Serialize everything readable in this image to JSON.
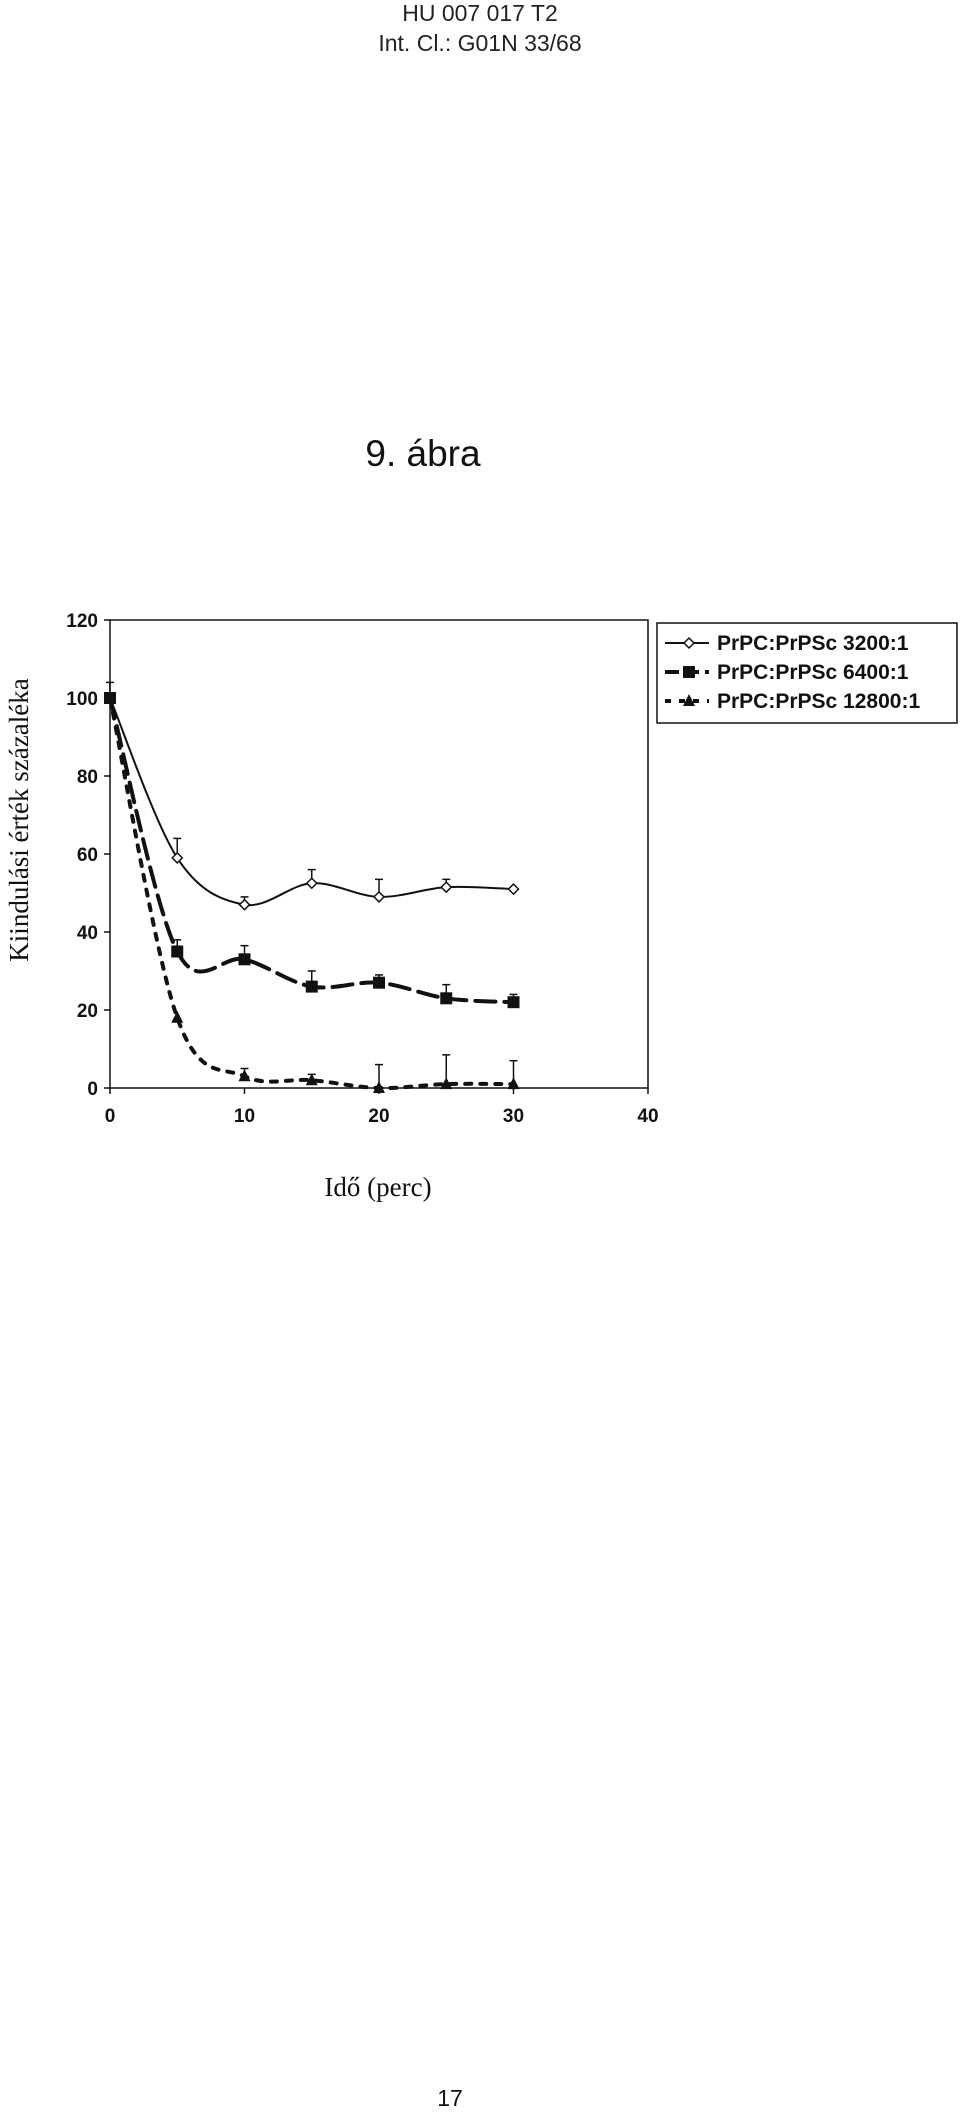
{
  "header": {
    "line1": "HU 007 017 T2",
    "line2": "Int. Cl.: G01N 33/68"
  },
  "figure_title": "9. ábra",
  "page_number": "17",
  "chart_data": {
    "type": "line",
    "title": "",
    "xlabel": "Idő (perc)",
    "ylabel": "Kiindulási érték százaléka",
    "xlim": [
      0,
      40
    ],
    "ylim": [
      0,
      120
    ],
    "xticks": [
      0,
      10,
      20,
      30,
      40
    ],
    "yticks": [
      0,
      20,
      40,
      60,
      80,
      100,
      120
    ],
    "legend_position": "right, outside plot",
    "grid": false,
    "x": [
      0,
      5,
      10,
      15,
      20,
      25,
      30
    ],
    "series": [
      {
        "name": "PrPC:PrPSc 3200:1",
        "marker": "open-diamond",
        "line": "solid",
        "values": [
          100,
          59,
          47,
          52.5,
          49,
          51.5,
          51
        ],
        "errors": [
          4,
          5,
          2,
          3.5,
          4.5,
          2,
          0
        ]
      },
      {
        "name": "PrPC:PrPSc 6400:1",
        "marker": "filled-square",
        "line": "long-dash",
        "values": [
          100,
          35,
          33,
          26,
          27,
          23,
          22
        ],
        "errors": [
          0,
          3,
          3.5,
          4,
          2,
          3.5,
          2
        ]
      },
      {
        "name": "PrPC:PrPSc 12800:1",
        "marker": "filled-triangle",
        "line": "dotted",
        "values": [
          100,
          18,
          3,
          2,
          0,
          1,
          1
        ],
        "errors": [
          0,
          0,
          2,
          1.5,
          6,
          7.5,
          6
        ]
      }
    ]
  }
}
